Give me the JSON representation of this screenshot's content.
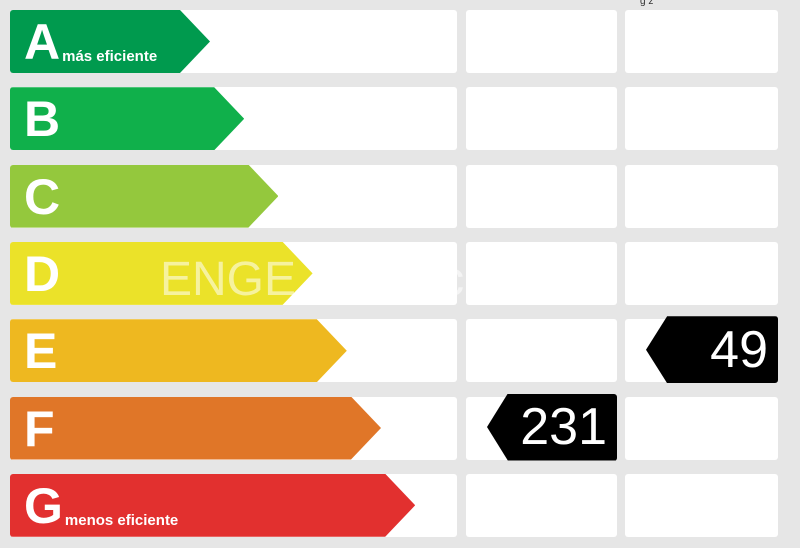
{
  "header_fragment": "g  ž",
  "classes": [
    {
      "letter": "A",
      "label": "más eficiente",
      "color": "#009a4e"
    },
    {
      "letter": "B",
      "label": "",
      "color": "#10b04b"
    },
    {
      "letter": "C",
      "label": "",
      "color": "#94c83d"
    },
    {
      "letter": "D",
      "label": "",
      "color": "#ebe229"
    },
    {
      "letter": "E",
      "label": "",
      "color": "#eeb820"
    },
    {
      "letter": "F",
      "label": "",
      "color": "#e07628"
    },
    {
      "letter": "G",
      "label": "menos eficiente",
      "color": "#e2302f"
    }
  ],
  "ratings": [
    {
      "column": 2,
      "class": "F",
      "value": "231"
    },
    {
      "column": 3,
      "class": "E",
      "value": "49"
    }
  ],
  "watermark": "ENGE habitaclia S"
}
